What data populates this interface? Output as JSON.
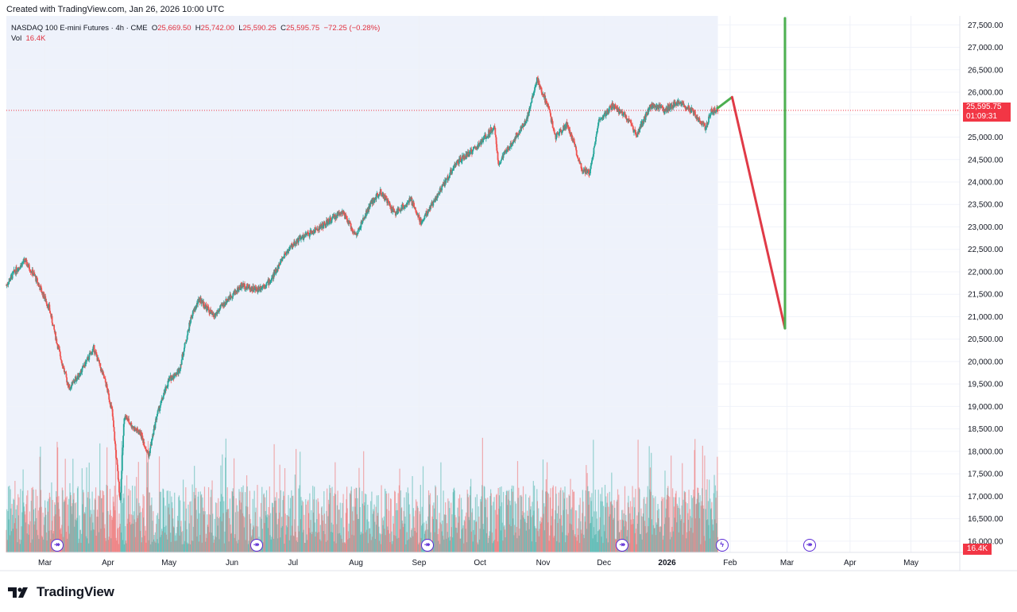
{
  "caption": "Created with TradingView.com, Jan 26, 2026 10:00 UTC",
  "legend": {
    "symbol": "NASDAQ 100 E-mini Futures · 4h · CME",
    "o_label": "O",
    "o": "25,669.50",
    "h_label": "H",
    "h": "25,742.00",
    "l_label": "L",
    "l": "25,590.25",
    "c_label": "C",
    "c": "25,595.75",
    "change": "−72.25 (−0.28%)",
    "vol_label": "Vol",
    "vol_value": "16.4K"
  },
  "price_tags": {
    "last": "25,595.75",
    "countdown": "01:09:31",
    "volume": "16.4K"
  },
  "footer": {
    "brand": "TradingView"
  },
  "colors": {
    "up": "#26a69a",
    "down": "#ef5350",
    "last_price": "#f23645",
    "projection_up": "#4caf50",
    "projection_down": "#e03a47",
    "event": "#5b2bd6",
    "session_shade": "#eef2fb"
  },
  "chart_data": {
    "type": "candlestick",
    "interval": "4h",
    "y_axis": {
      "side": "right",
      "ticks": [
        16000,
        16500,
        17000,
        17500,
        18000,
        18500,
        19000,
        19500,
        20000,
        20500,
        21000,
        21500,
        22000,
        22500,
        23000,
        23500,
        24000,
        24500,
        25000,
        25500,
        26000,
        26500,
        27000,
        27500
      ],
      "tick_labels": [
        "16,000.00",
        "16,500.00",
        "17,000.00",
        "17,500.00",
        "18,000.00",
        "18,500.00",
        "19,000.00",
        "19,500.00",
        "20,000.00",
        "20,500.00",
        "21,000.00",
        "21,500.00",
        "22,000.00",
        "22,500.00",
        "23,000.00",
        "23,500.00",
        "24,000.00",
        "24,500.00",
        "25,000.00",
        "25,500.00",
        "26,000.00",
        "26,500.00",
        "27,000.00",
        "27,500.00"
      ],
      "range": [
        15750,
        27700
      ]
    },
    "x_axis": {
      "labels": [
        "Mar",
        "Apr",
        "May",
        "Jun",
        "Jul",
        "Aug",
        "Sep",
        "Oct",
        "Nov",
        "Dec",
        "2026",
        "Feb",
        "Mar",
        "Apr",
        "May"
      ],
      "bold": [
        "2026"
      ],
      "dates": [
        "2025-03-01",
        "2025-04-01",
        "2025-05-01",
        "2025-06-01",
        "2025-07-01",
        "2025-08-01",
        "2025-09-01",
        "2025-10-01",
        "2025-11-01",
        "2025-12-01",
        "2026-01-01",
        "2026-02-01",
        "2026-03-01",
        "2026-04-01",
        "2026-05-01"
      ],
      "range": [
        "2025-02-10",
        "2026-05-25"
      ]
    },
    "price_path": [
      [
        "2025-02-10",
        21700
      ],
      [
        "2025-02-14",
        22000
      ],
      [
        "2025-02-19",
        22250
      ],
      [
        "2025-02-24",
        21900
      ],
      [
        "2025-03-03",
        21200
      ],
      [
        "2025-03-07",
        20400
      ],
      [
        "2025-03-11",
        19700
      ],
      [
        "2025-03-13",
        19400
      ],
      [
        "2025-03-19",
        19800
      ],
      [
        "2025-03-25",
        20300
      ],
      [
        "2025-03-31",
        19500
      ],
      [
        "2025-04-03",
        18900
      ],
      [
        "2025-04-07",
        16900
      ],
      [
        "2025-04-09",
        18800
      ],
      [
        "2025-04-14",
        18500
      ],
      [
        "2025-04-17",
        18400
      ],
      [
        "2025-04-21",
        17900
      ],
      [
        "2025-04-25",
        18800
      ],
      [
        "2025-05-01",
        19600
      ],
      [
        "2025-05-06",
        19800
      ],
      [
        "2025-05-12",
        21000
      ],
      [
        "2025-05-16",
        21400
      ],
      [
        "2025-05-23",
        21000
      ],
      [
        "2025-05-30",
        21400
      ],
      [
        "2025-06-06",
        21700
      ],
      [
        "2025-06-13",
        21600
      ],
      [
        "2025-06-20",
        21800
      ],
      [
        "2025-06-27",
        22400
      ],
      [
        "2025-07-03",
        22700
      ],
      [
        "2025-07-11",
        22900
      ],
      [
        "2025-07-18",
        23100
      ],
      [
        "2025-07-25",
        23350
      ],
      [
        "2025-08-01",
        22800
      ],
      [
        "2025-08-08",
        23500
      ],
      [
        "2025-08-13",
        23800
      ],
      [
        "2025-08-20",
        23300
      ],
      [
        "2025-08-28",
        23600
      ],
      [
        "2025-09-02",
        23100
      ],
      [
        "2025-09-10",
        23700
      ],
      [
        "2025-09-19",
        24400
      ],
      [
        "2025-09-30",
        24800
      ],
      [
        "2025-10-08",
        25250
      ],
      [
        "2025-10-10",
        24400
      ],
      [
        "2025-10-17",
        24900
      ],
      [
        "2025-10-24",
        25400
      ],
      [
        "2025-10-29",
        26300
      ],
      [
        "2025-11-04",
        25600
      ],
      [
        "2025-11-07",
        25000
      ],
      [
        "2025-11-13",
        25300
      ],
      [
        "2025-11-20",
        24300
      ],
      [
        "2025-11-24",
        24200
      ],
      [
        "2025-11-28",
        25300
      ],
      [
        "2025-12-05",
        25700
      ],
      [
        "2025-12-12",
        25450
      ],
      [
        "2025-12-17",
        25050
      ],
      [
        "2025-12-24",
        25700
      ],
      [
        "2025-12-31",
        25600
      ],
      [
        "2026-01-07",
        25800
      ],
      [
        "2026-01-14",
        25550
      ],
      [
        "2026-01-20",
        25200
      ],
      [
        "2026-01-23",
        25600
      ],
      [
        "2026-01-26",
        25595.75
      ]
    ],
    "volume_note": "16.4K latest bar",
    "last_price": 25595.75,
    "projection": [
      {
        "x": "2026-01-26",
        "y": 25650,
        "color": "green"
      },
      {
        "x": "2026-02-02",
        "y": 25890,
        "color": "red"
      },
      {
        "x": "2026-02-28",
        "y": 20740,
        "color": "green"
      },
      {
        "x": "2026-02-28",
        "y": 27650
      }
    ],
    "events": [
      {
        "date": "2025-03-07",
        "glyph": "↠"
      },
      {
        "date": "2025-06-13",
        "glyph": "↠"
      },
      {
        "date": "2025-09-05",
        "glyph": "↠"
      },
      {
        "date": "2025-12-10",
        "glyph": "↠"
      },
      {
        "date": "2026-01-28",
        "glyph": "ϟ"
      },
      {
        "date": "2026-03-12",
        "glyph": "↠"
      }
    ],
    "grid": true,
    "session_shading_until": "2026-01-26"
  }
}
